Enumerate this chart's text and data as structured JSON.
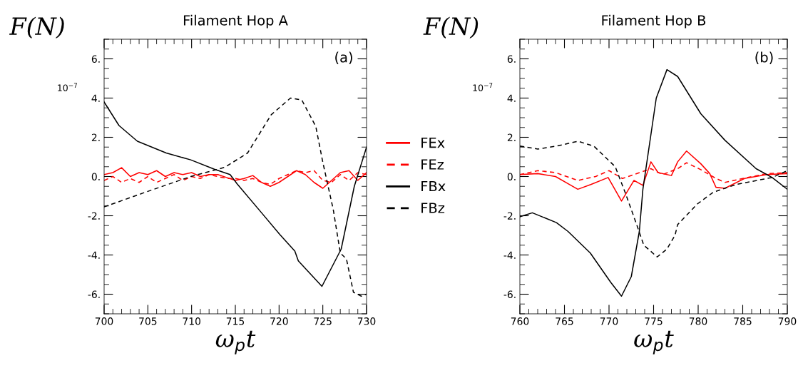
{
  "chart_data": [
    {
      "type": "line",
      "title": "Filament Hop A",
      "xlabel": "ω$_{p}$t",
      "ylabel": "F(N)",
      "annotations": [
        "10$^{−7}$",
        "(a)"
      ],
      "xlim": [
        700,
        730
      ],
      "xticks": [
        700,
        705,
        710,
        715,
        720,
        725,
        730
      ],
      "ylim": [
        -7,
        7
      ],
      "yticks": [
        {
          "value": -6,
          "label": "-6."
        },
        {
          "value": -4,
          "label": "-4."
        },
        {
          "value": -2,
          "label": "-2."
        },
        {
          "value": 0,
          "label": "0."
        },
        {
          "value": 2,
          "label": "2."
        },
        {
          "value": 4,
          "label": "4."
        },
        {
          "value": 6,
          "label": "6."
        }
      ],
      "legend": "right",
      "grid": false,
      "series": [
        {
          "name": "FEx",
          "color": "#ff0000",
          "line_style": "solid",
          "x": [
            700,
            701,
            702,
            703,
            704,
            705,
            706,
            707,
            708,
            709,
            710,
            711,
            712,
            713,
            714,
            715,
            716,
            717,
            718,
            719,
            720,
            721,
            722,
            723,
            724,
            725,
            726,
            727,
            728,
            729,
            730
          ],
          "values": [
            0.1,
            0.2,
            0.45,
            0.0,
            0.2,
            0.1,
            0.3,
            0.0,
            0.2,
            0.1,
            0.2,
            0.0,
            0.1,
            0.1,
            -0.05,
            -0.2,
            -0.1,
            0.05,
            -0.3,
            -0.5,
            -0.3,
            0.0,
            0.3,
            0.1,
            -0.3,
            -0.6,
            -0.2,
            0.2,
            0.3,
            -0.2,
            0.2
          ]
        },
        {
          "name": "FEz",
          "color": "#ff0000",
          "line_style": "dashed",
          "x": [
            700,
            701,
            702,
            703,
            704,
            705,
            706,
            707,
            708,
            709,
            710,
            711,
            712,
            713,
            714,
            715,
            716,
            717,
            718,
            719,
            720,
            721,
            722,
            723,
            724,
            725,
            726,
            727,
            728,
            729,
            730
          ],
          "values": [
            -0.2,
            0.0,
            -0.3,
            -0.1,
            -0.3,
            0.0,
            -0.3,
            -0.1,
            0.1,
            -0.2,
            0.0,
            -0.1,
            0.1,
            0.0,
            -0.1,
            -0.1,
            -0.2,
            -0.1,
            -0.3,
            -0.4,
            -0.1,
            0.1,
            0.3,
            0.2,
            0.3,
            -0.2,
            -0.3,
            0.1,
            -0.2,
            0.2,
            0.1
          ]
        },
        {
          "name": "FBx",
          "color": "#000000",
          "line_style": "solid",
          "x": [
            700,
            701.7,
            703.8,
            707.1,
            709.9,
            712.6,
            714.4,
            715.2,
            718,
            720.1,
            721.8,
            722.2,
            724.9,
            727.1,
            728.6,
            730
          ],
          "values": [
            3.8,
            2.6,
            1.8,
            1.2,
            0.85,
            0.37,
            0.1,
            -0.37,
            -1.85,
            -2.96,
            -3.8,
            -4.3,
            -5.6,
            -3.7,
            -0.5,
            1.5
          ]
        },
        {
          "name": "FBz",
          "color": "#000000",
          "line_style": "dashed",
          "x": [
            700,
            704.4,
            709.9,
            713.8,
            716.4,
            719.1,
            721.3,
            722.6,
            724.2,
            725,
            726.2,
            727,
            727.7,
            728.5,
            729.4,
            730
          ],
          "values": [
            -1.55,
            -0.85,
            0.0,
            0.47,
            1.2,
            3.15,
            4.0,
            3.9,
            2.55,
            0.73,
            -1.7,
            -3.9,
            -4.2,
            -5.9,
            -6.1,
            -6.0
          ]
        }
      ]
    },
    {
      "type": "line",
      "title": "Filament Hop B",
      "xlabel": "ω$_{p}$t",
      "ylabel": "F(N)",
      "annotations": [
        "10$^{−7}$",
        "(b)"
      ],
      "xlim": [
        760,
        790
      ],
      "xticks": [
        760,
        765,
        770,
        775,
        780,
        785,
        790
      ],
      "ylim": [
        -7,
        7
      ],
      "yticks": [
        {
          "value": -6,
          "label": "-6."
        },
        {
          "value": -4,
          "label": "-4."
        },
        {
          "value": -2,
          "label": "-2."
        },
        {
          "value": 0,
          "label": "0."
        },
        {
          "value": 2,
          "label": "2."
        },
        {
          "value": 4,
          "label": "4."
        },
        {
          "value": 6,
          "label": "6."
        }
      ],
      "grid": false,
      "series": [
        {
          "color": "#ff0000",
          "line_style": "solid",
          "x": [
            760,
            762,
            764,
            766.5,
            768,
            769.9,
            771.4,
            772.8,
            773.8,
            774.7,
            775.5,
            777,
            777.7,
            778.7,
            780.3,
            781.3,
            782,
            783,
            785.2,
            787.7,
            790
          ],
          "values": [
            0.1,
            0.15,
            0.0,
            -0.65,
            -0.4,
            -0.05,
            -1.25,
            -0.2,
            -0.45,
            0.75,
            0.2,
            0.05,
            0.75,
            1.3,
            0.65,
            0.15,
            -0.55,
            -0.6,
            -0.1,
            0.1,
            0.15
          ]
        },
        {
          "color": "#ff0000",
          "line_style": "dashed",
          "x": [
            760,
            762,
            764,
            766.5,
            768.5,
            770,
            771.5,
            772.8,
            774.7,
            776,
            777.7,
            778.7,
            780.3,
            782,
            783,
            785,
            787.7,
            790
          ],
          "values": [
            0.1,
            0.3,
            0.2,
            -0.2,
            0.0,
            0.3,
            -0.1,
            0.1,
            0.4,
            0.1,
            0.4,
            0.7,
            0.35,
            -0.1,
            -0.3,
            -0.1,
            0.15,
            0.2
          ]
        },
        {
          "color": "#000000",
          "line_style": "solid",
          "x": [
            760,
            761.4,
            764.1,
            765.4,
            767.9,
            770.2,
            771.4,
            772.5,
            773.4,
            773.8,
            775.3,
            776.5,
            777.7,
            780.3,
            783,
            786.5,
            788.3,
            790
          ],
          "values": [
            -2.05,
            -1.85,
            -2.35,
            -2.8,
            -3.9,
            -5.4,
            -6.1,
            -5.1,
            -2.8,
            -0.65,
            4.0,
            5.45,
            5.1,
            3.2,
            1.85,
            0.4,
            -0.05,
            -0.65
          ]
        },
        {
          "color": "#000000",
          "line_style": "dashed",
          "x": [
            760,
            762,
            764.1,
            766.5,
            768.3,
            770.7,
            771.8,
            773.1,
            773.9,
            775.4,
            776.5,
            777.4,
            777.7,
            779.9,
            781.7,
            784.3,
            788.3,
            790
          ],
          "values": [
            1.55,
            1.4,
            1.55,
            1.8,
            1.55,
            0.5,
            -0.8,
            -2.45,
            -3.5,
            -4.1,
            -3.7,
            -3.0,
            -2.45,
            -1.4,
            -0.8,
            -0.4,
            -0.05,
            0.3
          ]
        }
      ]
    }
  ]
}
